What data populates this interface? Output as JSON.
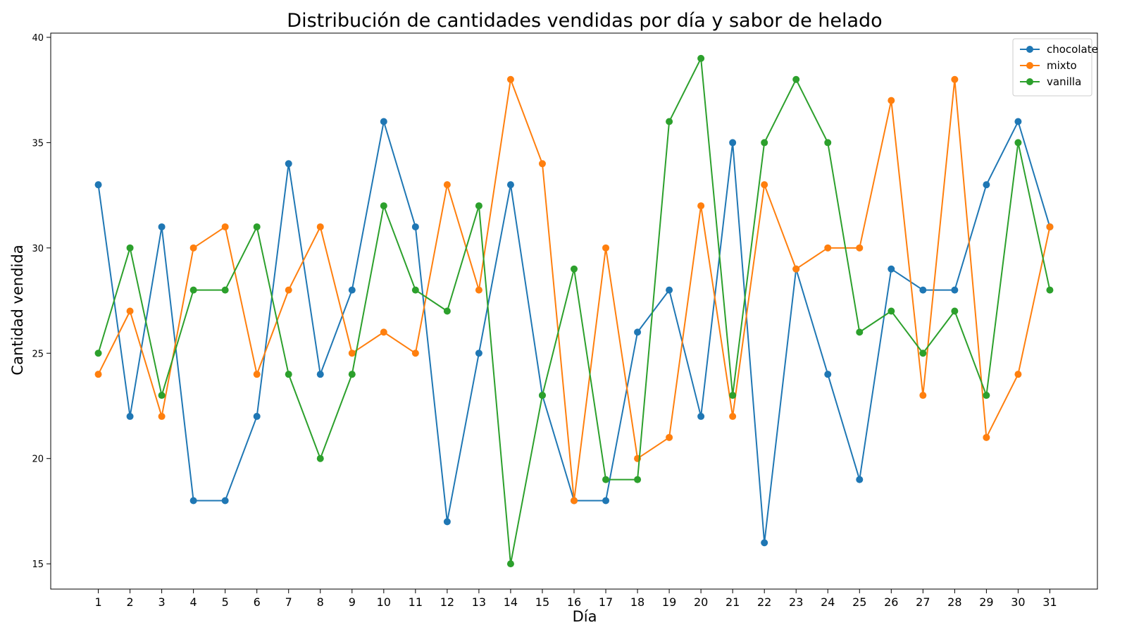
{
  "chart_data": {
    "type": "line",
    "title": "Distribución de cantidades vendidas por día y sabor de helado",
    "xlabel": "Día",
    "ylabel": "Cantidad vendida",
    "x": [
      1,
      2,
      3,
      4,
      5,
      6,
      7,
      8,
      9,
      10,
      11,
      12,
      13,
      14,
      15,
      16,
      17,
      18,
      19,
      20,
      21,
      22,
      23,
      24,
      25,
      26,
      27,
      28,
      29,
      30,
      31
    ],
    "x_tick_labels": [
      "1",
      "2",
      "3",
      "4",
      "5",
      "6",
      "7",
      "8",
      "9",
      "10",
      "11",
      "12",
      "13",
      "14",
      "15",
      "16",
      "17",
      "18",
      "19",
      "20",
      "21",
      "22",
      "23",
      "24",
      "25",
      "26",
      "27",
      "28",
      "29",
      "30",
      "31"
    ],
    "y_ticks": [
      15,
      20,
      25,
      30,
      35,
      40
    ],
    "y_tick_labels": [
      "15",
      "20",
      "25",
      "30",
      "35",
      "40"
    ],
    "xlim": [
      -0.5,
      32.5
    ],
    "ylim": [
      13.8,
      40.2
    ],
    "grid": false,
    "legend_position": "top-right",
    "series": [
      {
        "name": "chocolate",
        "color": "#1f77b4",
        "marker": "circle",
        "values": [
          33,
          22,
          31,
          18,
          18,
          22,
          34,
          24,
          28,
          36,
          31,
          17,
          25,
          33,
          23,
          18,
          18,
          26,
          28,
          22,
          35,
          16,
          29,
          24,
          19,
          29,
          28,
          28,
          33,
          36,
          31
        ]
      },
      {
        "name": "mixto",
        "color": "#ff7f0e",
        "marker": "circle",
        "values": [
          24,
          27,
          22,
          30,
          31,
          24,
          28,
          31,
          25,
          26,
          25,
          33,
          28,
          38,
          34,
          18,
          30,
          20,
          21,
          32,
          22,
          33,
          29,
          30,
          30,
          37,
          23,
          38,
          21,
          24,
          31
        ]
      },
      {
        "name": "vanilla",
        "color": "#2ca02c",
        "marker": "circle",
        "values": [
          25,
          30,
          23,
          28,
          28,
          31,
          24,
          20,
          24,
          32,
          28,
          27,
          32,
          15,
          23,
          29,
          19,
          19,
          36,
          39,
          23,
          35,
          38,
          35,
          26,
          27,
          25,
          27,
          23,
          35,
          28
        ]
      }
    ]
  }
}
